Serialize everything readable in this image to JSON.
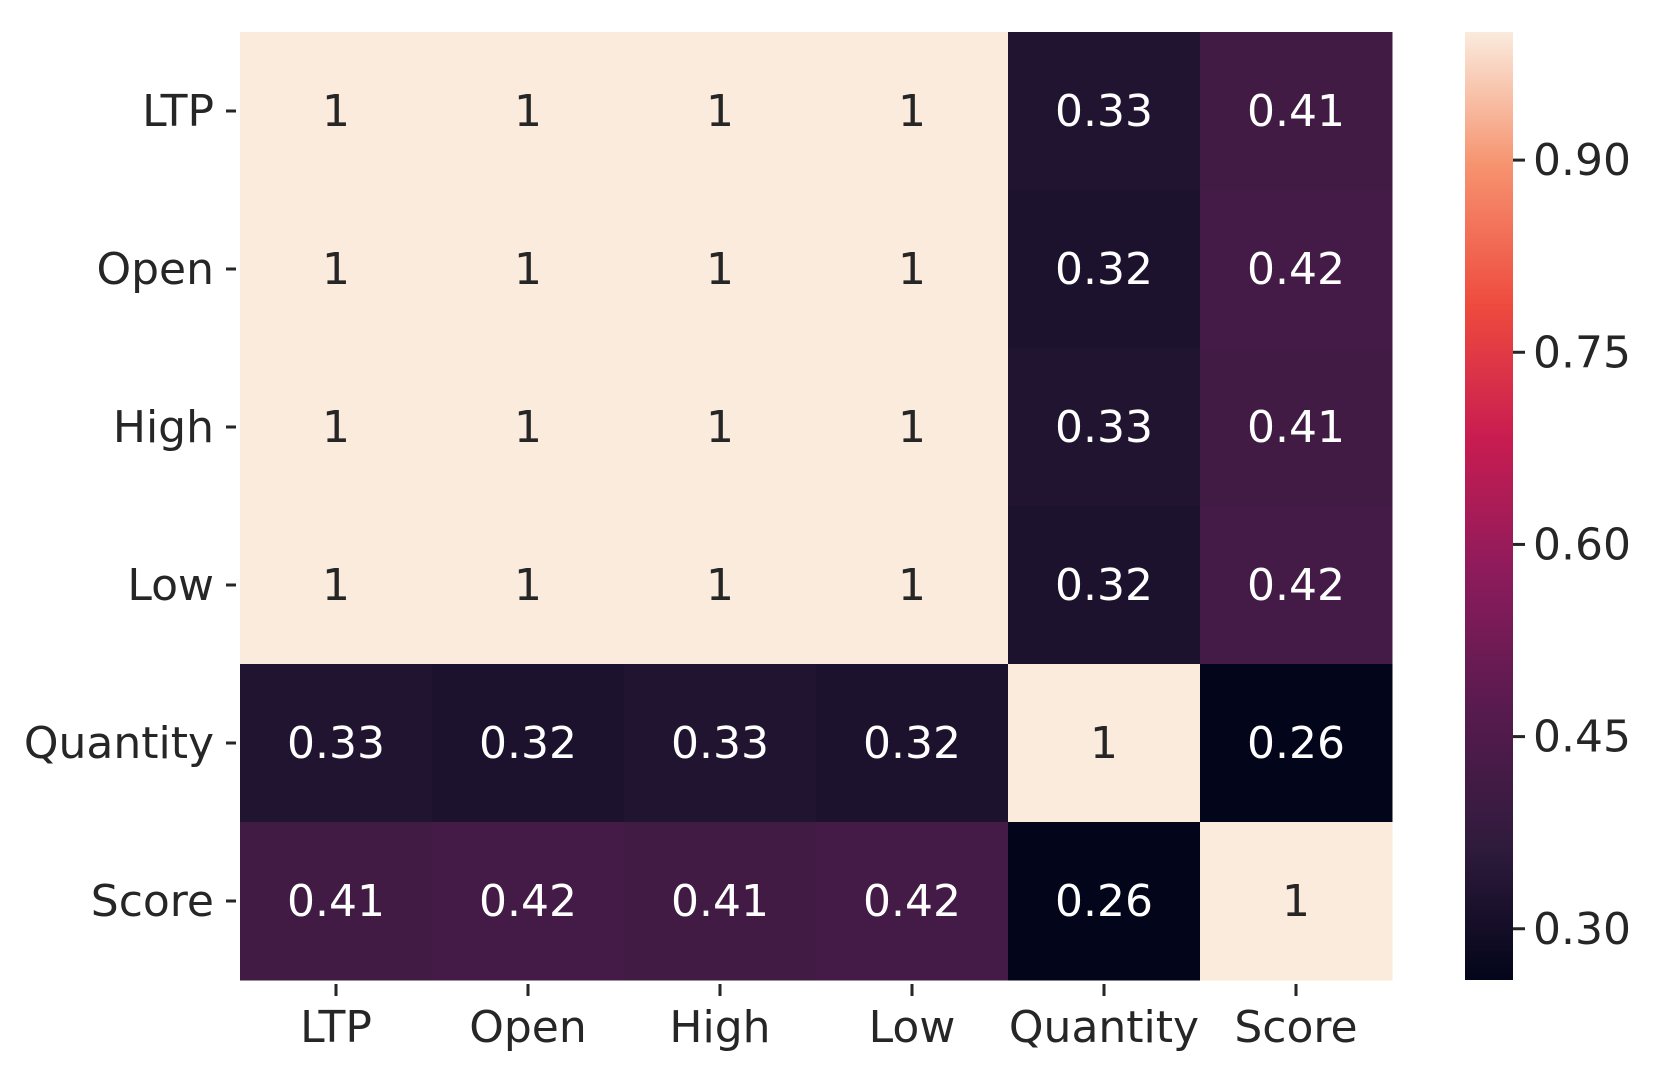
{
  "chart_data": {
    "type": "heatmap",
    "title": "",
    "xlabel": "",
    "ylabel": "",
    "row_labels": [
      "LTP",
      "Open",
      "High",
      "Low",
      "Quantity",
      "Score"
    ],
    "col_labels": [
      "LTP",
      "Open",
      "High",
      "Low",
      "Quantity",
      "Score"
    ],
    "values": [
      [
        1,
        1,
        1,
        1,
        0.33,
        0.41
      ],
      [
        1,
        1,
        1,
        1,
        0.32,
        0.42
      ],
      [
        1,
        1,
        1,
        1,
        0.33,
        0.41
      ],
      [
        1,
        1,
        1,
        1,
        0.32,
        0.42
      ],
      [
        0.33,
        0.32,
        0.33,
        0.32,
        1,
        0.26
      ],
      [
        0.41,
        0.42,
        0.41,
        0.42,
        0.26,
        1
      ]
    ],
    "annotations": [
      [
        "1",
        "1",
        "1",
        "1",
        "0.33",
        "0.41"
      ],
      [
        "1",
        "1",
        "1",
        "1",
        "0.32",
        "0.42"
      ],
      [
        "1",
        "1",
        "1",
        "1",
        "0.33",
        "0.41"
      ],
      [
        "1",
        "1",
        "1",
        "1",
        "0.32",
        "0.42"
      ],
      [
        "0.33",
        "0.32",
        "0.33",
        "0.32",
        "1",
        "0.26"
      ],
      [
        "0.41",
        "0.42",
        "0.41",
        "0.42",
        "0.26",
        "1"
      ]
    ],
    "colormap": "rocket",
    "colorbar": {
      "vmin": 0.26,
      "vmax": 1,
      "ticks": [
        0.3,
        0.45,
        0.6,
        0.75,
        0.9
      ],
      "tick_labels": [
        "0.30",
        "0.45",
        "0.60",
        "0.75",
        "0.90"
      ]
    }
  }
}
